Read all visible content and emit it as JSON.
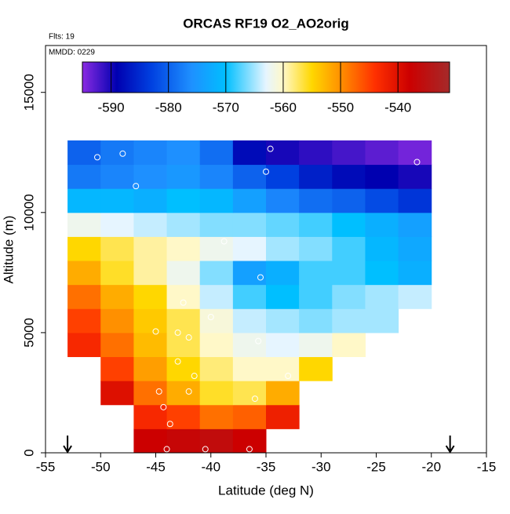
{
  "chart_data": {
    "type": "heatmap",
    "title": "ORCAS RF19 O2_AO2orig",
    "annotations": [
      "Flts: 19",
      "MMDD: 0229"
    ],
    "x_label": "Latitude (deg N)",
    "y_label": "Altitude (m)",
    "xlim": [
      -55,
      -15
    ],
    "ylim": [
      0,
      16950
    ],
    "xticks": [
      -55,
      -50,
      -45,
      -40,
      -35,
      -30,
      -25,
      -20,
      -15
    ],
    "yticks": [
      0,
      5000,
      10000,
      15000
    ],
    "x_edges": [
      -53,
      -50,
      -47,
      -44,
      -41,
      -38,
      -35,
      -32,
      -29,
      -26,
      -23,
      -20
    ],
    "y_edges": [
      0,
      1000,
      2000,
      3000,
      4000,
      5000,
      6000,
      7000,
      8000,
      9000,
      10000,
      11000,
      12000,
      13000
    ],
    "z": [
      [
        null,
        null,
        -538,
        -537,
        -536,
        -538,
        null,
        null,
        null,
        null,
        null
      ],
      [
        null,
        null,
        -543,
        -545,
        -548,
        -547,
        -542,
        null,
        null,
        null,
        null
      ],
      [
        null,
        -540,
        -548,
        -552,
        -556,
        -557,
        -552,
        null,
        null,
        null,
        null
      ],
      [
        null,
        -545,
        -551,
        -555,
        -558,
        -560,
        -560,
        -555,
        null,
        null,
        null
      ],
      [
        -543,
        -548,
        -553,
        -557,
        -560,
        -562,
        -563,
        -562,
        -560,
        null,
        null
      ],
      [
        -545,
        -550,
        -554,
        -557,
        -561,
        -564,
        -565,
        -566,
        -565,
        -565,
        null
      ],
      [
        -548,
        -552,
        -555,
        -560,
        -564,
        -568,
        -570,
        -568,
        -566,
        -565,
        -564
      ],
      [
        -552,
        -556,
        -559,
        -562,
        -566,
        -574,
        -572,
        -568,
        -568,
        -570,
        -572
      ],
      [
        -555,
        -557,
        -559,
        -560,
        -562,
        -563,
        -565,
        -566,
        -568,
        -571,
        -573
      ],
      [
        -562,
        -563,
        -564,
        -565,
        -566,
        -566,
        -567,
        -568,
        -570,
        -572,
        -574
      ],
      [
        -571,
        -571,
        -572,
        -570,
        -571,
        -574,
        -577,
        -579,
        -580,
        -582,
        -584
      ],
      [
        -578,
        -577,
        -576,
        -575,
        -577,
        -580,
        -583,
        -586,
        -588,
        -589,
        -590
      ],
      [
        -580,
        -578,
        -577,
        -576,
        -579,
        -588,
        -590,
        -591,
        -592,
        -593,
        -594
      ]
    ],
    "clim": [
      -595,
      -531
    ],
    "cticks": [
      -590,
      -580,
      -570,
      -560,
      -550,
      -540
    ],
    "colormap": [
      {
        "value": -595,
        "color": "#8a2be2"
      },
      {
        "value": -589,
        "color": "#0000b0"
      },
      {
        "value": -583,
        "color": "#0040e0"
      },
      {
        "value": -576,
        "color": "#1e90ff"
      },
      {
        "value": -570,
        "color": "#00bfff"
      },
      {
        "value": -563,
        "color": "#e6f5ff"
      },
      {
        "value": -560,
        "color": "#fff8c8"
      },
      {
        "value": -555,
        "color": "#ffd700"
      },
      {
        "value": -550,
        "color": "#ff9000"
      },
      {
        "value": -544,
        "color": "#ff3000"
      },
      {
        "value": -538,
        "color": "#cc0000"
      },
      {
        "value": -531,
        "color": "#a52a2a"
      }
    ],
    "points": {
      "color": "#ffffff",
      "x": [
        -50.3,
        -48,
        -46.8,
        -34.6,
        -35,
        -21.3,
        -38.8,
        -35.5,
        -42.5,
        -40,
        -45,
        -43,
        -42,
        -35.7,
        -43,
        -33,
        -41.5,
        -44.7,
        -42,
        -36,
        -44.3,
        -43.7,
        -44,
        -40.5,
        -36.5
      ],
      "y": [
        12300,
        12450,
        11100,
        12650,
        11700,
        12100,
        8800,
        7300,
        6250,
        5650,
        5050,
        5000,
        4800,
        4650,
        3800,
        3200,
        3200,
        2550,
        2550,
        2250,
        1900,
        1200,
        150,
        150,
        150
      ]
    },
    "arrows_x": [
      -53,
      -18.3
    ]
  }
}
